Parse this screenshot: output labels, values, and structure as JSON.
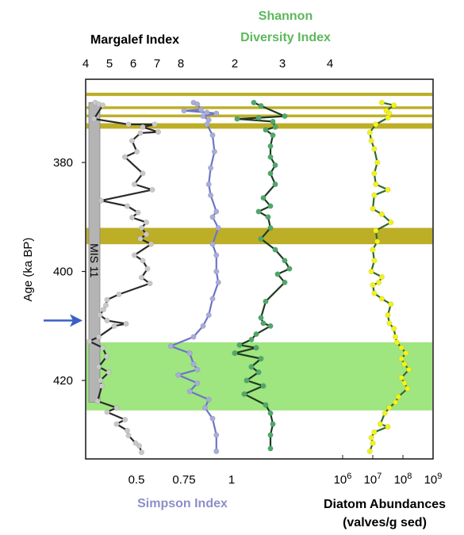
{
  "chart_data": {
    "type": "line",
    "y_axis": {
      "label": "Age (ka BP)",
      "ticks": [
        380,
        400,
        420
      ],
      "range": [
        366,
        440
      ],
      "direction": "down"
    },
    "margalef_axis": {
      "title": "Margalef Index",
      "ticks": [
        "4",
        "5",
        "6",
        "7",
        "8"
      ],
      "range": [
        4,
        8.55
      ],
      "position": "top"
    },
    "shannon_axis": {
      "title_line1": "Shannon",
      "title_line2": "Diversity Index",
      "ticks": [
        "2",
        "3",
        "4"
      ],
      "range": [
        1.15,
        5.2
      ],
      "position": "top",
      "color": "#5cb85c"
    },
    "simpson_axis": {
      "title": "Simpson Index",
      "ticks": [
        "0.5",
        "0.75",
        "1"
      ],
      "range": [
        0.18,
        1.25
      ],
      "position": "bottom",
      "color": "#8b8fc7"
    },
    "diatom_axis": {
      "title_line1": "Diatom Abundances",
      "title_line2": "(valves/g sed)",
      "ticks": [
        {
          "base": "10",
          "exp": "6"
        },
        {
          "base": "10",
          "exp": "7"
        },
        {
          "base": "10",
          "exp": "8"
        },
        {
          "base": "10",
          "exp": "9"
        }
      ],
      "range_log10": [
        6,
        9
      ],
      "scale": "log",
      "position": "bottom"
    },
    "annotation": {
      "label": "MIS 11",
      "age_range": [
        369,
        424
      ]
    },
    "arrow_age": 409,
    "arrow_color": "#3a5fc8",
    "highlight_bands": [
      {
        "age_range": [
          367.2,
          367.8
        ],
        "color": "#b9aa1c"
      },
      {
        "age_range": [
          369.7,
          370.2
        ],
        "color": "#b9aa1c"
      },
      {
        "age_range": [
          371.2,
          371.7
        ],
        "color": "#b9aa1c"
      },
      {
        "age_range": [
          372.8,
          373.8
        ],
        "color": "#b9aa1c"
      },
      {
        "age_range": [
          392.0,
          395.0
        ],
        "color": "#b9aa1c"
      },
      {
        "age_range": [
          413.0,
          425.5
        ],
        "color": "#8ee06a"
      }
    ],
    "series": [
      {
        "id": "margalef",
        "axis": "margalef",
        "color": "#2a2a2a",
        "marker": "#c8c8c8",
        "points": [
          [
            4.4,
            369
          ],
          [
            4.55,
            369.3
          ],
          [
            4.72,
            369.5
          ],
          [
            4.35,
            372
          ],
          [
            5.8,
            373
          ],
          [
            6.9,
            373
          ],
          [
            6.4,
            373.5
          ],
          [
            7.05,
            374.4
          ],
          [
            6.3,
            374.6
          ],
          [
            5.95,
            376
          ],
          [
            6.15,
            378
          ],
          [
            5.65,
            379
          ],
          [
            6.4,
            382
          ],
          [
            6.05,
            384
          ],
          [
            6.8,
            385
          ],
          [
            4.65,
            387
          ],
          [
            5.75,
            388
          ],
          [
            6.2,
            389.2
          ],
          [
            5.95,
            390.1
          ],
          [
            6.55,
            391
          ],
          [
            6.35,
            392
          ],
          [
            6.55,
            393.2
          ],
          [
            6.3,
            394
          ],
          [
            6.75,
            395
          ],
          [
            6.05,
            397
          ],
          [
            6.4,
            398
          ],
          [
            6.6,
            399.5
          ],
          [
            6.35,
            401.1
          ],
          [
            6.7,
            402.2
          ],
          [
            5.4,
            404.2
          ],
          [
            4.9,
            405.2
          ],
          [
            4.85,
            406.2
          ],
          [
            4.75,
            407
          ],
          [
            4.6,
            408
          ],
          [
            4.9,
            409
          ],
          [
            5.7,
            409.6
          ],
          [
            5.2,
            410
          ],
          [
            4.55,
            412
          ],
          [
            4.15,
            412.8
          ],
          [
            4.72,
            414
          ],
          [
            4.88,
            415.6
          ],
          [
            4.55,
            417.5
          ],
          [
            4.97,
            418.5
          ],
          [
            4.62,
            420
          ],
          [
            4.68,
            421
          ],
          [
            4.5,
            423.8
          ],
          [
            5.3,
            425
          ],
          [
            4.9,
            425.8
          ],
          [
            5.65,
            427.2
          ],
          [
            5.3,
            428
          ],
          [
            5.75,
            429.2
          ],
          [
            5.8,
            430.1
          ],
          [
            6.1,
            431.5
          ],
          [
            6.25,
            432
          ],
          [
            6.35,
            433.2
          ]
        ]
      },
      {
        "id": "simpson",
        "axis": "simpson",
        "color": "#6c74c9",
        "marker": "#a9acd8",
        "points": [
          [
            0.8,
            369
          ],
          [
            0.82,
            369.3
          ],
          [
            0.84,
            370.3
          ],
          [
            0.75,
            370.5
          ],
          [
            0.87,
            370.8
          ],
          [
            0.92,
            371
          ],
          [
            0.85,
            371.5
          ],
          [
            0.88,
            372.2
          ],
          [
            0.87,
            373
          ],
          [
            0.9,
            375
          ],
          [
            0.91,
            378
          ],
          [
            0.89,
            381
          ],
          [
            0.88,
            384
          ],
          [
            0.89,
            386
          ],
          [
            0.92,
            389
          ],
          [
            0.9,
            390
          ],
          [
            0.93,
            392
          ],
          [
            0.9,
            395
          ],
          [
            0.92,
            397
          ],
          [
            0.92,
            400
          ],
          [
            0.93,
            402
          ],
          [
            0.9,
            405
          ],
          [
            0.88,
            408
          ],
          [
            0.85,
            410
          ],
          [
            0.8,
            412
          ],
          [
            0.68,
            413.7
          ],
          [
            0.78,
            415
          ],
          [
            0.8,
            417
          ],
          [
            0.82,
            418
          ],
          [
            0.72,
            419
          ],
          [
            0.82,
            420.5
          ],
          [
            0.78,
            422
          ],
          [
            0.88,
            423.5
          ],
          [
            0.86,
            425
          ],
          [
            0.9,
            427
          ],
          [
            0.92,
            430
          ],
          [
            0.92,
            433
          ]
        ]
      },
      {
        "id": "shannon",
        "axis": "shannon",
        "color": "#1f3a22",
        "marker": "#4fa86b",
        "points": [
          [
            2.4,
            369
          ],
          [
            2.55,
            369.6
          ],
          [
            3.05,
            371.5
          ],
          [
            2.5,
            371.8
          ],
          [
            2.05,
            372
          ],
          [
            2.8,
            372.5
          ],
          [
            2.85,
            373.5
          ],
          [
            2.65,
            374
          ],
          [
            2.8,
            375
          ],
          [
            2.75,
            377
          ],
          [
            2.75,
            379
          ],
          [
            2.85,
            380.5
          ],
          [
            2.75,
            382
          ],
          [
            2.85,
            384
          ],
          [
            2.6,
            386.5
          ],
          [
            2.75,
            388
          ],
          [
            2.5,
            389
          ],
          [
            2.7,
            390
          ],
          [
            2.75,
            392
          ],
          [
            2.55,
            394
          ],
          [
            2.85,
            396
          ],
          [
            3.05,
            398
          ],
          [
            3.15,
            399.5
          ],
          [
            2.9,
            400.5
          ],
          [
            3.05,
            402
          ],
          [
            2.65,
            405.5
          ],
          [
            2.55,
            408.5
          ],
          [
            2.6,
            409.5
          ],
          [
            2.75,
            410
          ],
          [
            2.45,
            411.5
          ],
          [
            2.35,
            412.5
          ],
          [
            2.1,
            413.5
          ],
          [
            2.45,
            414
          ],
          [
            2.0,
            415
          ],
          [
            2.55,
            416
          ],
          [
            2.35,
            417.5
          ],
          [
            2.5,
            418.5
          ],
          [
            2.25,
            420
          ],
          [
            2.6,
            421
          ],
          [
            2.2,
            422.5
          ],
          [
            2.65,
            424.5
          ],
          [
            2.75,
            426
          ],
          [
            2.8,
            428
          ],
          [
            2.75,
            430
          ],
          [
            2.75,
            432.5
          ]
        ]
      },
      {
        "id": "diatom",
        "axis": "diatom",
        "color": "#2e6b2e",
        "marker": "#f2f21a",
        "points": [
          [
            7.3,
            369
          ],
          [
            7.7,
            369.5
          ],
          [
            7.45,
            370.5
          ],
          [
            7.55,
            371
          ],
          [
            7.5,
            371.8
          ],
          [
            7.1,
            373
          ],
          [
            6.9,
            374.5
          ],
          [
            6.95,
            376
          ],
          [
            7.05,
            377.5
          ],
          [
            7.15,
            380
          ],
          [
            7.05,
            382
          ],
          [
            7.1,
            384
          ],
          [
            7.5,
            385
          ],
          [
            7.05,
            386
          ],
          [
            7.0,
            388.5
          ],
          [
            7.3,
            389.5
          ],
          [
            7.6,
            391
          ],
          [
            7.1,
            392.5
          ],
          [
            7.15,
            394.5
          ],
          [
            7.0,
            396
          ],
          [
            7.05,
            398
          ],
          [
            6.95,
            400
          ],
          [
            7.3,
            401
          ],
          [
            7.2,
            402
          ],
          [
            7.0,
            402.5
          ],
          [
            7.05,
            404
          ],
          [
            7.3,
            405
          ],
          [
            7.6,
            406
          ],
          [
            7.5,
            408
          ],
          [
            7.55,
            409.5
          ],
          [
            7.7,
            410.5
          ],
          [
            7.75,
            412
          ],
          [
            7.8,
            413
          ],
          [
            7.95,
            414
          ],
          [
            8.1,
            415
          ],
          [
            7.95,
            416
          ],
          [
            8.05,
            417
          ],
          [
            8.2,
            418
          ],
          [
            7.95,
            419.5
          ],
          [
            8.05,
            420.5
          ],
          [
            8.15,
            421.5
          ],
          [
            7.85,
            423
          ],
          [
            7.75,
            424
          ],
          [
            7.55,
            425
          ],
          [
            7.4,
            426
          ],
          [
            7.25,
            428
          ],
          [
            7.5,
            428.5
          ],
          [
            7.05,
            429.5
          ],
          [
            6.95,
            430.5
          ],
          [
            7.0,
            431.5
          ],
          [
            6.9,
            433
          ]
        ]
      }
    ]
  }
}
